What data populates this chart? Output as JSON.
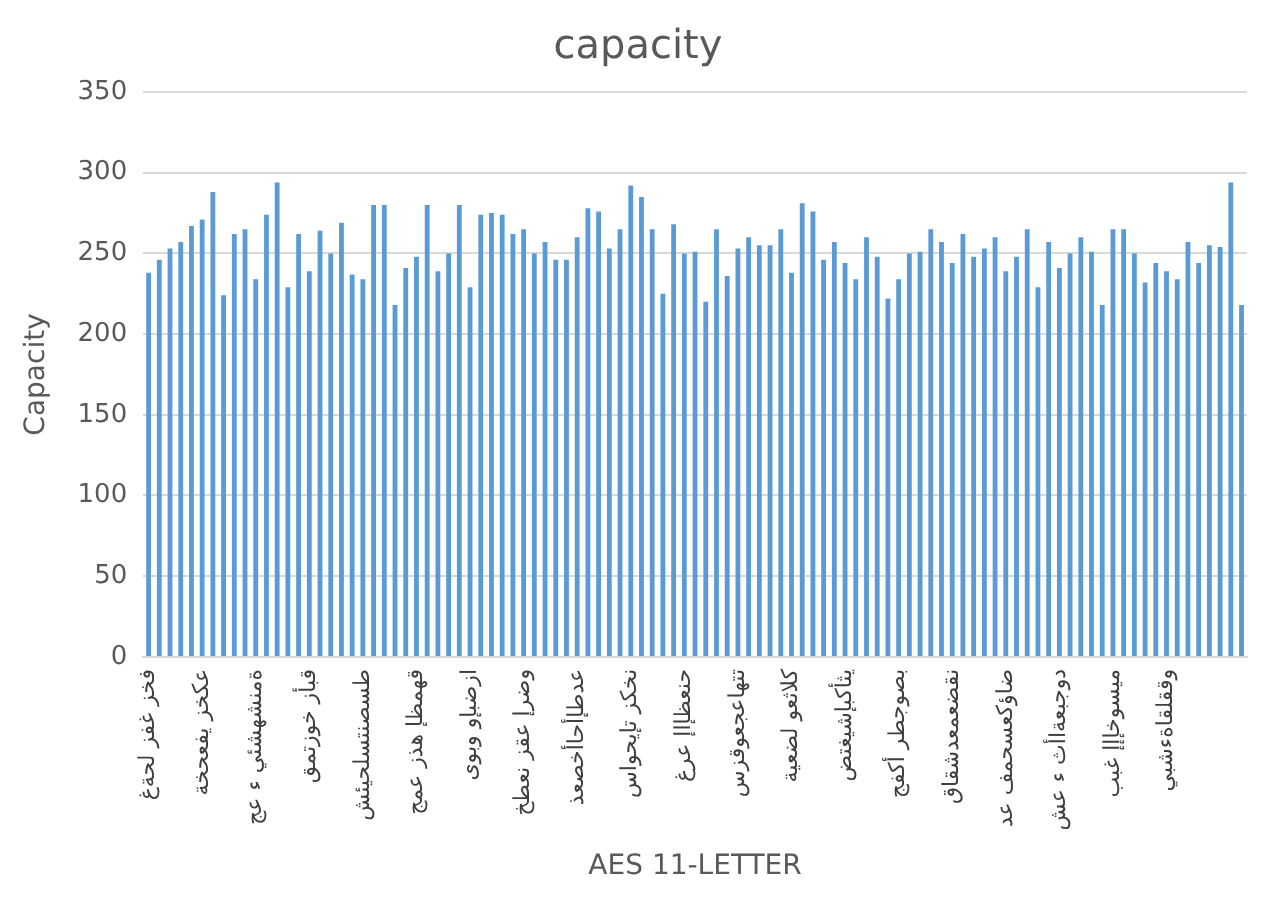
{
  "chart_data": {
    "type": "bar",
    "title": "capacity",
    "xlabel": "AES 11-LETTER",
    "ylabel": "Capacity",
    "categories": [
      "فخز غفز لحةغ",
      null,
      null,
      null,
      null,
      "عكخز يفعحخة",
      null,
      null,
      null,
      null,
      "ةمنشهشئي ء عج",
      null,
      null,
      null,
      null,
      "قبأز خوزتمق",
      null,
      null,
      null,
      null,
      "طسصنتسلحيئش",
      null,
      null,
      null,
      null,
      "قهمظإ هذز عمج",
      null,
      null,
      null,
      null,
      "ازضبإو وبوى",
      null,
      null,
      null,
      null,
      "وضرإ عقز نعطخ",
      null,
      null,
      null,
      null,
      "عدطإأحاأخصعذ",
      null,
      null,
      null,
      null,
      "نخكز تإيحواس",
      null,
      null,
      null,
      null,
      "حنعظإاإ عرغ",
      null,
      null,
      null,
      null,
      "تتهاعجعوقزس",
      null,
      null,
      null,
      null,
      "كلاثعو لضعية",
      null,
      null,
      null,
      null,
      "يثأكبإشيغتض",
      null,
      null,
      null,
      null,
      "بصوجطر أكفج",
      null,
      null,
      null,
      null,
      "نقضعمعدشقاق",
      null,
      null,
      null,
      null,
      "ضاؤكعسحمف عد",
      null,
      null,
      null,
      null,
      "دوجبعةاأث ء عش",
      null,
      null,
      null,
      null,
      "ميسوخإإإ غبب",
      null,
      null,
      null,
      null,
      "وققلقاةءشبي",
      null,
      null,
      null,
      null,
      null,
      null,
      null
    ],
    "values": [
      238,
      246,
      253,
      257,
      267,
      271,
      288,
      224,
      262,
      265,
      234,
      274,
      294,
      229,
      262,
      239,
      264,
      250,
      269,
      237,
      234,
      280,
      280,
      218,
      241,
      248,
      280,
      239,
      250,
      280,
      229,
      274,
      275,
      274,
      262,
      265,
      250,
      257,
      246,
      246,
      260,
      278,
      276,
      253,
      265,
      292,
      285,
      265,
      225,
      268,
      250,
      251,
      220,
      265,
      236,
      253,
      260,
      255,
      255,
      265,
      238,
      281,
      276,
      246,
      257,
      244,
      234,
      260,
      248,
      222,
      234,
      250,
      251,
      265,
      257,
      244,
      262,
      248,
      253,
      260,
      239,
      248,
      265,
      229,
      257,
      241,
      250,
      260,
      251,
      218,
      265,
      265,
      250,
      232,
      244,
      239,
      234,
      257,
      244,
      255,
      254,
      294,
      218
    ],
    "color": "#5b9bd5",
    "ylim": [
      0,
      350
    ],
    "yticks": [
      0,
      50,
      100,
      150,
      200,
      250,
      300,
      350
    ],
    "grid": "y"
  }
}
